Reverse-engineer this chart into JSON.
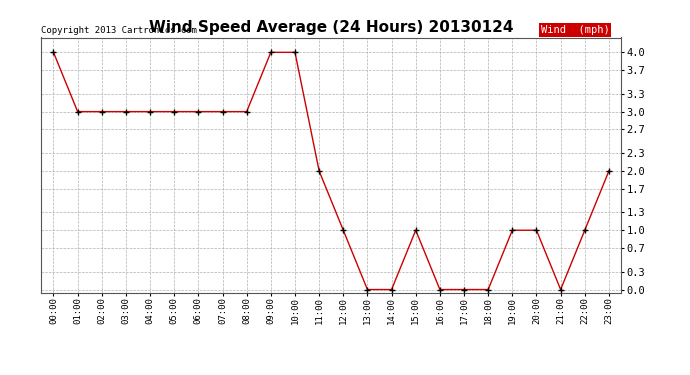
{
  "title": "Wind Speed Average (24 Hours) 20130124",
  "copyright_text": "Copyright 2013 Cartronics.com",
  "legend_label": "Wind  (mph)",
  "x_labels": [
    "00:00",
    "01:00",
    "02:00",
    "03:00",
    "04:00",
    "05:00",
    "06:00",
    "07:00",
    "08:00",
    "09:00",
    "10:00",
    "11:00",
    "12:00",
    "13:00",
    "14:00",
    "15:00",
    "16:00",
    "17:00",
    "18:00",
    "19:00",
    "20:00",
    "21:00",
    "22:00",
    "23:00"
  ],
  "y_values": [
    4.0,
    3.0,
    3.0,
    3.0,
    3.0,
    3.0,
    3.0,
    3.0,
    3.0,
    4.0,
    4.0,
    2.0,
    1.0,
    0.0,
    0.0,
    1.0,
    0.0,
    0.0,
    0.0,
    1.0,
    1.0,
    0.0,
    1.0,
    2.0
  ],
  "y_ticks": [
    0.0,
    0.3,
    0.7,
    1.0,
    1.3,
    1.7,
    2.0,
    2.3,
    2.7,
    3.0,
    3.3,
    3.7,
    4.0
  ],
  "ylim": [
    -0.05,
    4.25
  ],
  "line_color": "#cc0000",
  "marker_color": "#000000",
  "bg_color": "#ffffff",
  "grid_color": "#b0b0b0",
  "legend_bg": "#cc0000",
  "legend_text_color": "#ffffff",
  "title_fontsize": 11,
  "copyright_fontsize": 6.5
}
